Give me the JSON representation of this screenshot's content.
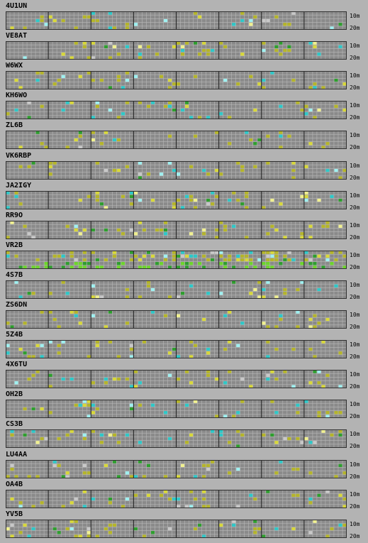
{
  "beacons": [
    {
      "call": "4U1UN"
    },
    {
      "call": "VE8AT"
    },
    {
      "call": "W6WX"
    },
    {
      "call": "KH6WO"
    },
    {
      "call": "ZL6B"
    },
    {
      "call": "VK6RBP"
    },
    {
      "call": "JA2IGY"
    },
    {
      "call": "RR9O"
    },
    {
      "call": "VR2B"
    },
    {
      "call": "4S7B"
    },
    {
      "call": "ZS6DN"
    },
    {
      "call": "5Z4B"
    },
    {
      "call": "4X6TU"
    },
    {
      "call": "OH2B"
    },
    {
      "call": "CS3B"
    },
    {
      "call": "LU4AA"
    },
    {
      "call": "OA4B"
    },
    {
      "call": "YV5B"
    }
  ],
  "bands": {
    "top": "10m",
    "bottom": "20m"
  },
  "colors": {
    "page_bg": "#b3b3b3",
    "grid_bg": "#8a8a8a",
    "grid_line": "#b8b8b8",
    "section_divider": "#202020",
    "border": "#303030",
    "signal_levels": [
      "#b5b52a",
      "#d8d83a",
      "#f0f090",
      "#2ec8c8",
      "#9ff0f0",
      "#2e9e2e",
      "#6cd62a",
      "#c8c8c8"
    ]
  }
}
